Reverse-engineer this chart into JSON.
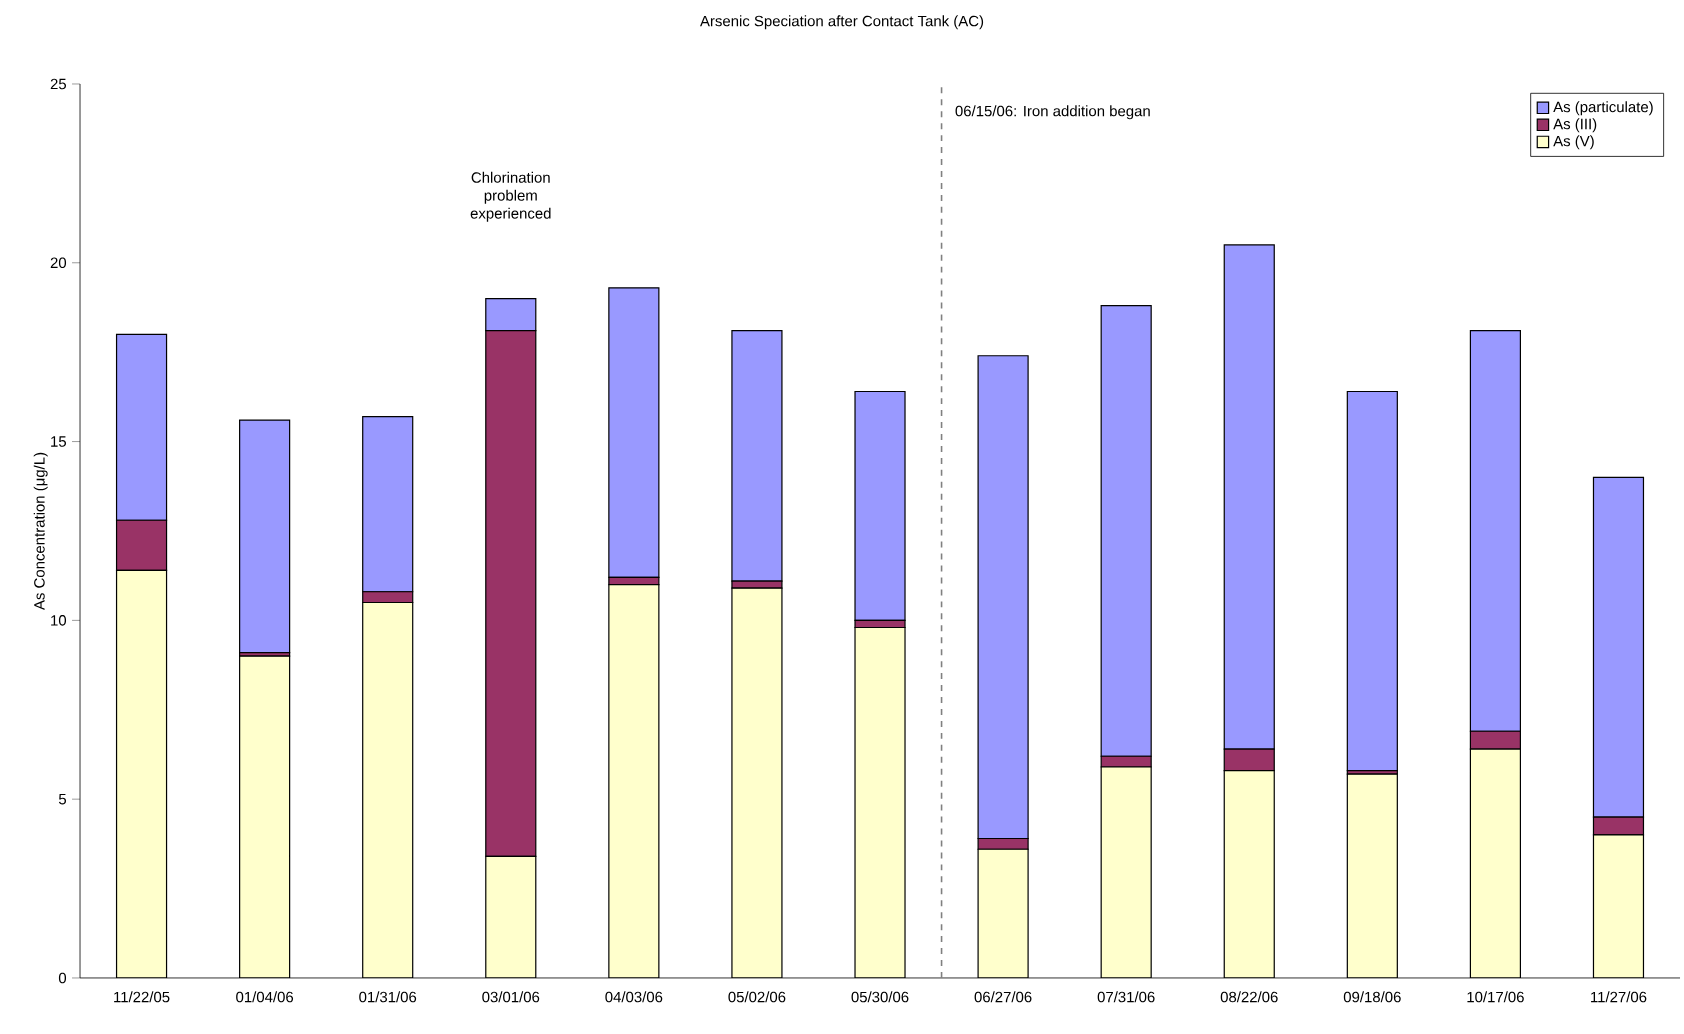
{
  "chart_data": {
    "type": "bar",
    "stacked": true,
    "title": "Arsenic Speciation after Contact Tank (AC)",
    "ylabel": "As Concentration (μg/L)",
    "categories": [
      "11/22/05",
      "01/04/06",
      "01/31/06",
      "03/01/06",
      "04/03/06",
      "05/02/06",
      "05/30/06",
      "06/27/06",
      "07/31/06",
      "08/22/06",
      "09/18/06",
      "10/17/06",
      "11/27/06"
    ],
    "series": [
      {
        "name": "As (V)",
        "color": "#ffffcc",
        "values": [
          11.4,
          9.0,
          10.5,
          3.4,
          11.0,
          10.9,
          9.8,
          3.6,
          5.9,
          5.8,
          5.7,
          6.4,
          4.0
        ]
      },
      {
        "name": "As (III)",
        "color": "#993366",
        "values": [
          1.4,
          0.1,
          0.3,
          14.7,
          0.2,
          0.2,
          0.2,
          0.3,
          0.3,
          0.6,
          0.1,
          0.5,
          0.5
        ]
      },
      {
        "name": "As (particulate)",
        "color": "#9999ff",
        "values": [
          5.2,
          6.5,
          4.9,
          0.9,
          8.1,
          7.0,
          6.4,
          13.5,
          12.6,
          14.1,
          10.6,
          11.2,
          9.5
        ]
      }
    ],
    "ylim": [
      0,
      25
    ],
    "yticks": [
      0,
      5,
      10,
      15,
      20,
      25
    ],
    "legend": "top right",
    "grid": false,
    "annotations": [
      "Chlorination problem experienced",
      "06/15/06: Iron addition began"
    ]
  }
}
